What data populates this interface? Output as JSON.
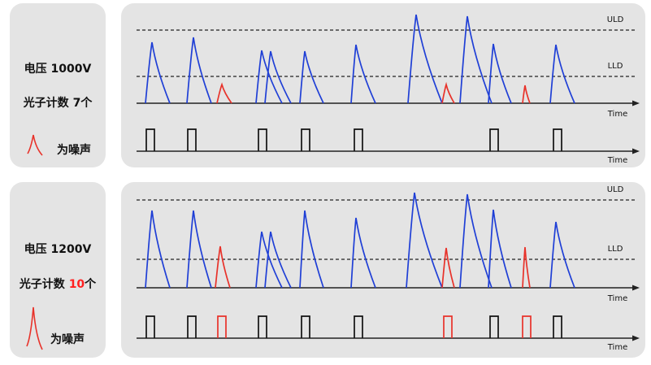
{
  "colors": {
    "signal": "#1f3fd6",
    "noise": "#e8322a",
    "axis": "#222222",
    "panel_bg": "#e4e4e4"
  },
  "axis_labels": {
    "uld": "ULD",
    "lld": "LLD",
    "time": "Time"
  },
  "panels": [
    {
      "voltage_prefix": "电压 ",
      "voltage_value": "1000V",
      "count_prefix": "光子计数 ",
      "count_value": "7",
      "count_suffix": "个",
      "noise_legend": "为噪声"
    },
    {
      "voltage_prefix": "电压 ",
      "voltage_value": "1200V",
      "count_prefix": "光子计数 ",
      "count_value": "10",
      "count_suffix": "个",
      "noise_legend": "为噪声"
    }
  ]
}
